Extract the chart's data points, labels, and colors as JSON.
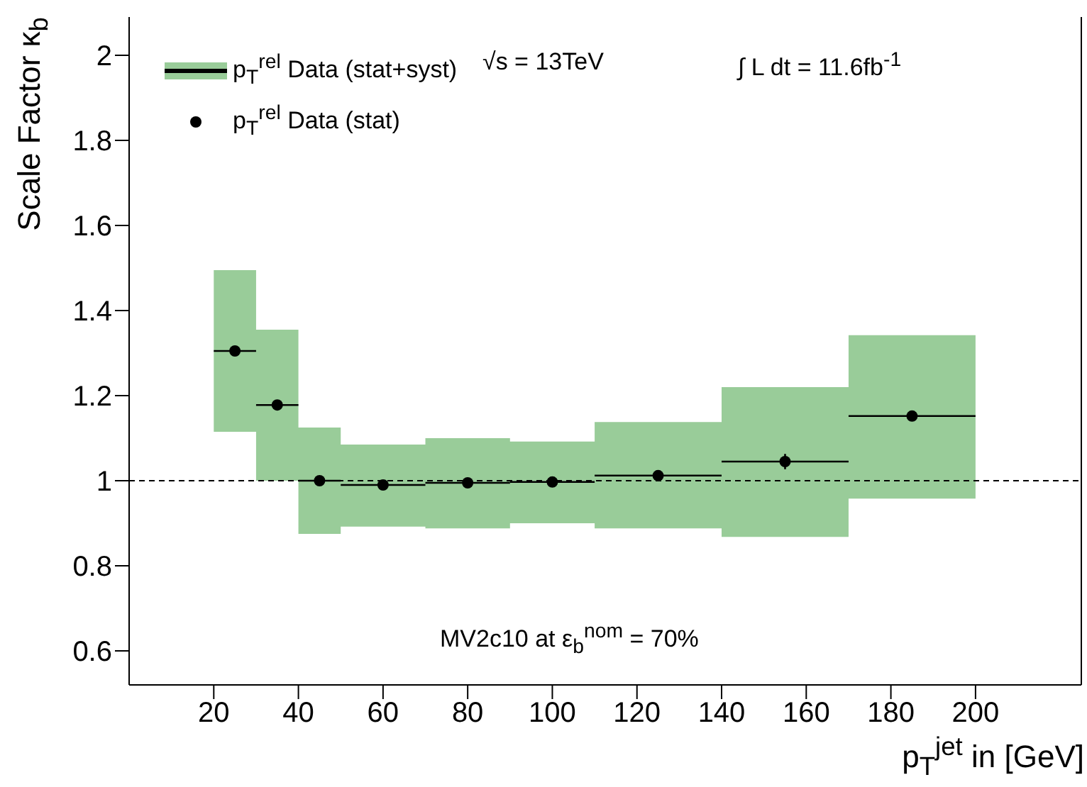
{
  "chart_data": {
    "type": "scatter",
    "xlabel": "p$_{T}$$^{jet}$ in [GeV]",
    "ylabel": "Scale Factor κ$_{b}$",
    "xlim": [
      0,
      225
    ],
    "xticks": [
      20,
      40,
      60,
      80,
      100,
      120,
      140,
      160,
      180,
      200
    ],
    "ylim": [
      0.52,
      2.09
    ],
    "yticks": [
      0.6,
      0.8,
      1,
      1.2,
      1.4,
      1.6,
      1.8,
      2
    ],
    "series": [
      {
        "type": "step",
        "name": "p$_{T}$$^{rel}$ Data (stat+syst)",
        "color": "#99cc99",
        "x": [
          20,
          30,
          40,
          50,
          70,
          90,
          110,
          140,
          170,
          200
        ],
        "values": [
          null,
          null,
          null,
          null,
          null,
          null,
          null,
          null,
          null,
          null
        ],
        "lower": [
          1.115,
          1.0,
          0.875,
          0.892,
          0.888,
          0.9,
          0.888,
          0.868,
          0.958,
          0.958
        ],
        "upper": [
          1.495,
          1.355,
          1.125,
          1.085,
          1.1,
          1.092,
          1.138,
          1.22,
          1.342,
          1.342
        ]
      },
      {
        "name": "p$_{T}$$^{rel}$ Data (stat)",
        "color": "#000000",
        "x": [
          25,
          35,
          45,
          60,
          80,
          100,
          125,
          155,
          185
        ],
        "values": [
          1.305,
          1.178,
          1.0,
          0.99,
          0.995,
          0.997,
          1.012,
          1.045,
          1.152
        ],
        "xerrors": [
          5,
          5,
          5,
          10,
          10,
          10,
          15,
          15,
          15
        ],
        "errors": [
          null,
          null,
          null,
          null,
          null,
          null,
          null,
          0.018,
          null
        ]
      }
    ],
    "ref_lines": [
      {
        "axis": "y",
        "value": 1,
        "color": "#000000",
        "line_style": "dashed"
      }
    ],
    "legend": "top left",
    "marker": "circle",
    "annotations": [
      "√s = 13TeV",
      "∫ L dt = 11.6fb$^{-1}$",
      "MV2c10 at ε$_{b}$$^{nom}$ = 70%"
    ]
  }
}
